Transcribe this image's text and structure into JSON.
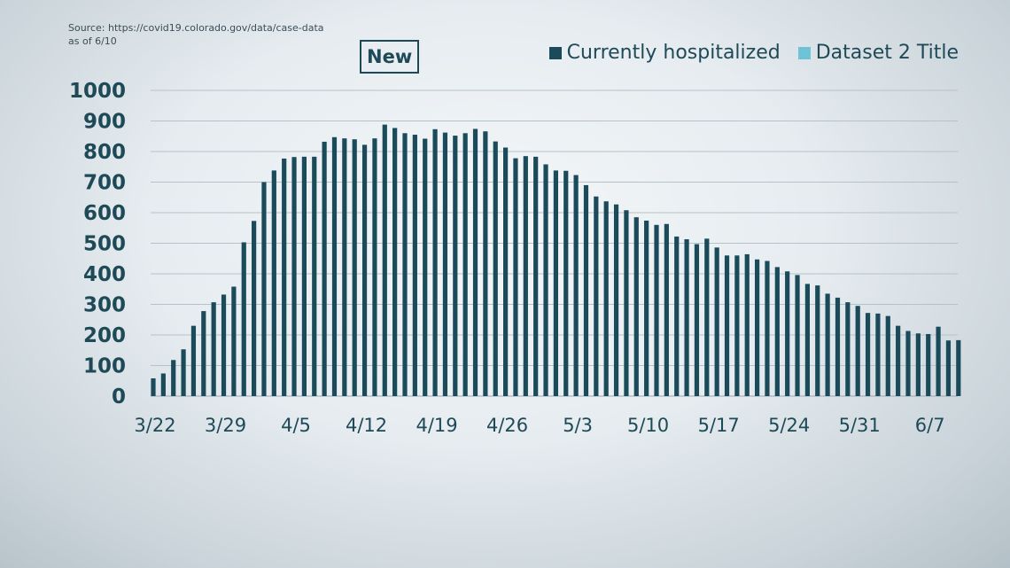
{
  "source": {
    "line1": "Source: https://covid19.colorado.gov/data/case-data",
    "line2": "as of 6/10"
  },
  "badge": "New",
  "legend": [
    {
      "label": "Currently hospitalized",
      "color": "#1b4b5a"
    },
    {
      "label": "Dataset 2 Title",
      "color": "#6ec3d9"
    }
  ],
  "chart_data": {
    "type": "bar",
    "title": "",
    "xlabel": "",
    "ylabel": "",
    "ylim": [
      0,
      1000
    ],
    "yticks": [
      0,
      100,
      200,
      300,
      400,
      500,
      600,
      700,
      800,
      900,
      1000
    ],
    "grid": true,
    "legend_position": "top-right",
    "start_date": "3/22",
    "tick_labels": [
      "3/22",
      "3/29",
      "4/5",
      "4/12",
      "4/19",
      "4/26",
      "5/3",
      "5/10",
      "5/17",
      "5/24",
      "5/31",
      "6/7"
    ],
    "series": [
      {
        "name": "Currently hospitalized",
        "color": "#1b4b5a",
        "values": [
          58,
          74,
          118,
          153,
          230,
          278,
          307,
          332,
          358,
          503,
          573,
          700,
          738,
          777,
          782,
          783,
          783,
          832,
          847,
          843,
          840,
          822,
          843,
          888,
          877,
          860,
          855,
          842,
          873,
          862,
          852,
          860,
          874,
          866,
          833,
          813,
          778,
          785,
          783,
          758,
          738,
          737,
          723,
          690,
          653,
          637,
          627,
          608,
          585,
          574,
          560,
          563,
          522,
          513,
          497,
          515,
          486,
          460,
          460,
          464,
          447,
          442,
          422,
          408,
          396,
          367,
          362,
          335,
          322,
          307,
          295,
          272,
          270,
          262,
          230,
          213,
          205,
          203,
          227,
          182,
          183
        ]
      },
      {
        "name": "Dataset 2 Title",
        "color": "#6ec3d9",
        "values": []
      }
    ]
  }
}
